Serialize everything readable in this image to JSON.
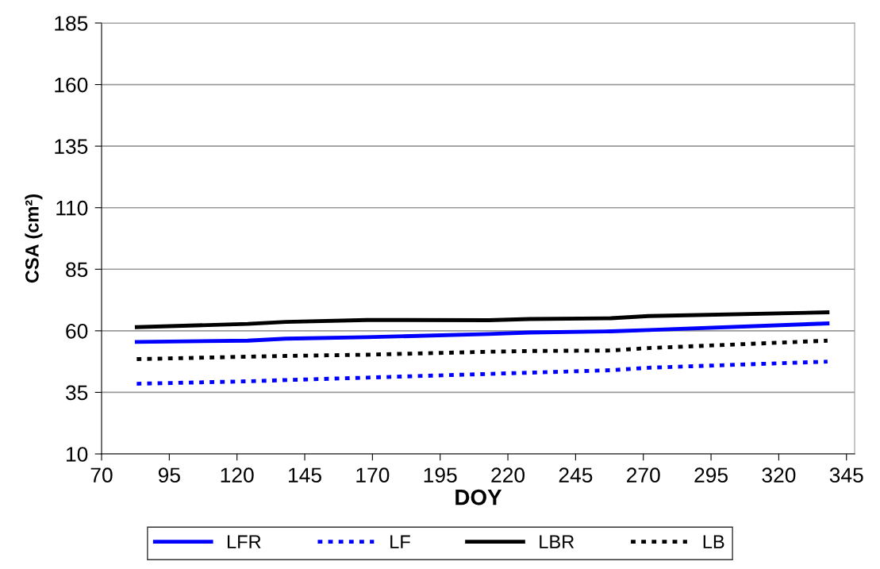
{
  "chart_data": {
    "type": "line",
    "xlabel": "DOY",
    "ylabel": "CSA (cm²)",
    "x": [
      83,
      124,
      138,
      168,
      213,
      228,
      258,
      272,
      338
    ],
    "series": [
      {
        "name": "LFR",
        "color": "#0000ff",
        "line_style": "solid",
        "values": [
          55.5,
          56,
          56.8,
          57.4,
          58.7,
          59.3,
          59.8,
          60.3,
          63
        ]
      },
      {
        "name": "LF",
        "color": "#0000ff",
        "line_style": "dotted",
        "values": [
          38.5,
          39.5,
          40,
          41,
          42.5,
          43,
          44,
          45,
          47.5
        ]
      },
      {
        "name": "LBR",
        "color": "#000000",
        "line_style": "solid",
        "values": [
          61.5,
          62.8,
          63.6,
          64.4,
          64.3,
          64.8,
          65.1,
          66,
          67.5
        ]
      },
      {
        "name": "LB",
        "color": "#000000",
        "line_style": "dotted",
        "values": [
          48.5,
          49.5,
          49.8,
          50.3,
          51.5,
          51.8,
          52,
          53,
          56
        ]
      }
    ],
    "xlim": [
      70,
      348
    ],
    "xticks": [
      70,
      95,
      120,
      145,
      170,
      195,
      220,
      245,
      270,
      295,
      320,
      345
    ],
    "ylim": [
      10,
      185
    ],
    "yticks": [
      10,
      35,
      60,
      85,
      110,
      135,
      160,
      185
    ],
    "grid": "y",
    "legend": "bottom",
    "marker": "none"
  }
}
